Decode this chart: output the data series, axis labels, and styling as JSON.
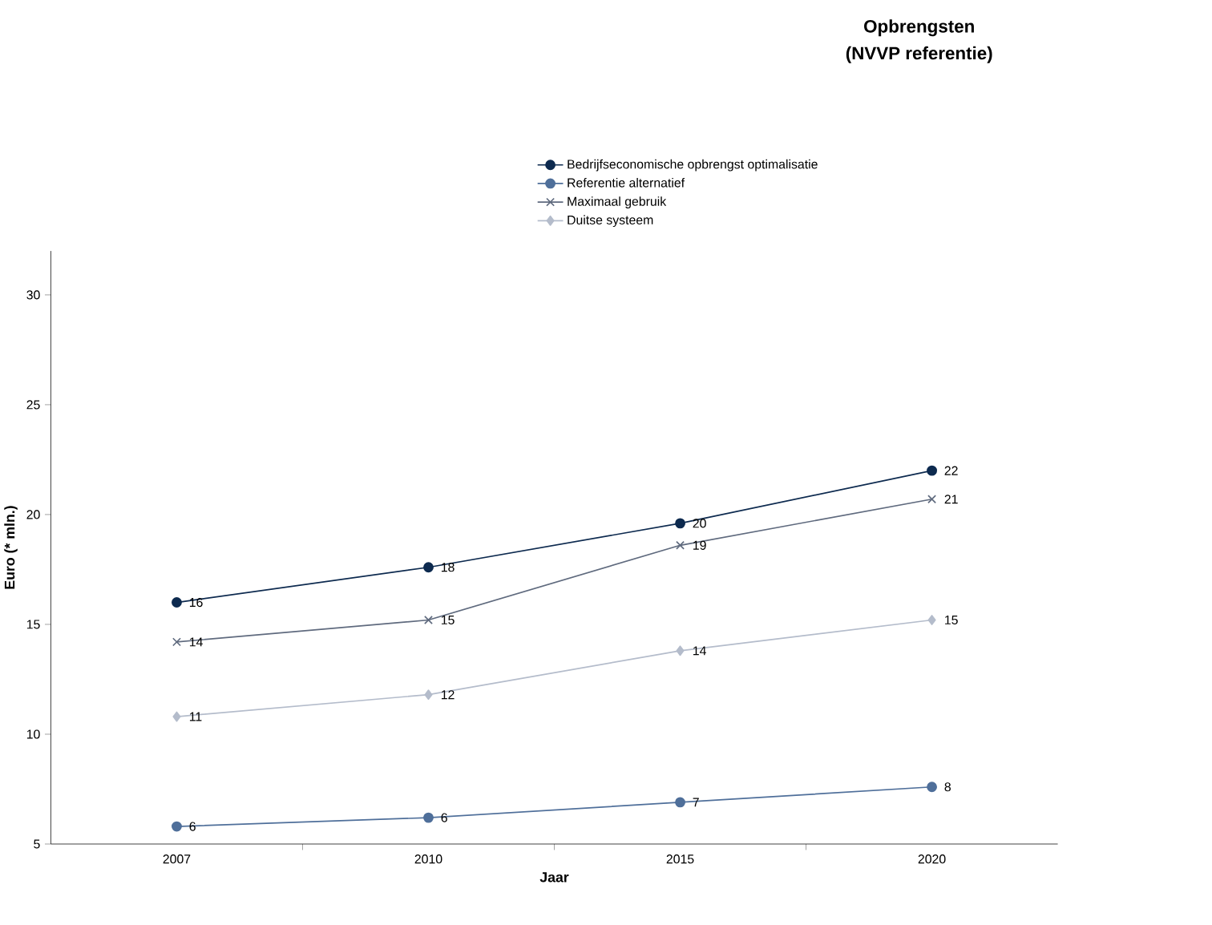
{
  "chart_data": {
    "type": "line",
    "title": "Opbrengsten",
    "subtitle": "(NVVP referentie)",
    "xlabel": "Jaar",
    "ylabel": "Euro (* mln.)",
    "categories": [
      "2007",
      "2010",
      "2015",
      "2020"
    ],
    "series": [
      {
        "name": "Bedrijfseconomische opbrengst optimalisatie",
        "color": "#0d2a4f",
        "marker": "circle",
        "values": [
          16.0,
          17.6,
          19.6,
          22.0
        ],
        "value_labels": [
          "16",
          "18",
          "20",
          "22"
        ]
      },
      {
        "name": "Referentie alternatief",
        "color": "#4f6f9a",
        "marker": "circle",
        "values": [
          5.8,
          6.2,
          6.9,
          7.6
        ],
        "value_labels": [
          "6",
          "6",
          "7",
          "8"
        ]
      },
      {
        "name": "Maximaal gebruik",
        "color": "#5f6a7e",
        "marker": "cross",
        "values": [
          14.2,
          15.2,
          18.6,
          20.7
        ],
        "value_labels": [
          "14",
          "15",
          "19",
          "21"
        ]
      },
      {
        "name": "Duitse systeem",
        "color": "#b4bccb",
        "marker": "diamond",
        "values": [
          10.8,
          11.8,
          13.8,
          15.2
        ],
        "value_labels": [
          "11",
          "12",
          "14",
          "15"
        ]
      }
    ],
    "ylim": [
      5,
      32
    ],
    "yticks": [
      5,
      10,
      15,
      20,
      25,
      30
    ],
    "grid": false,
    "legend": "top"
  }
}
